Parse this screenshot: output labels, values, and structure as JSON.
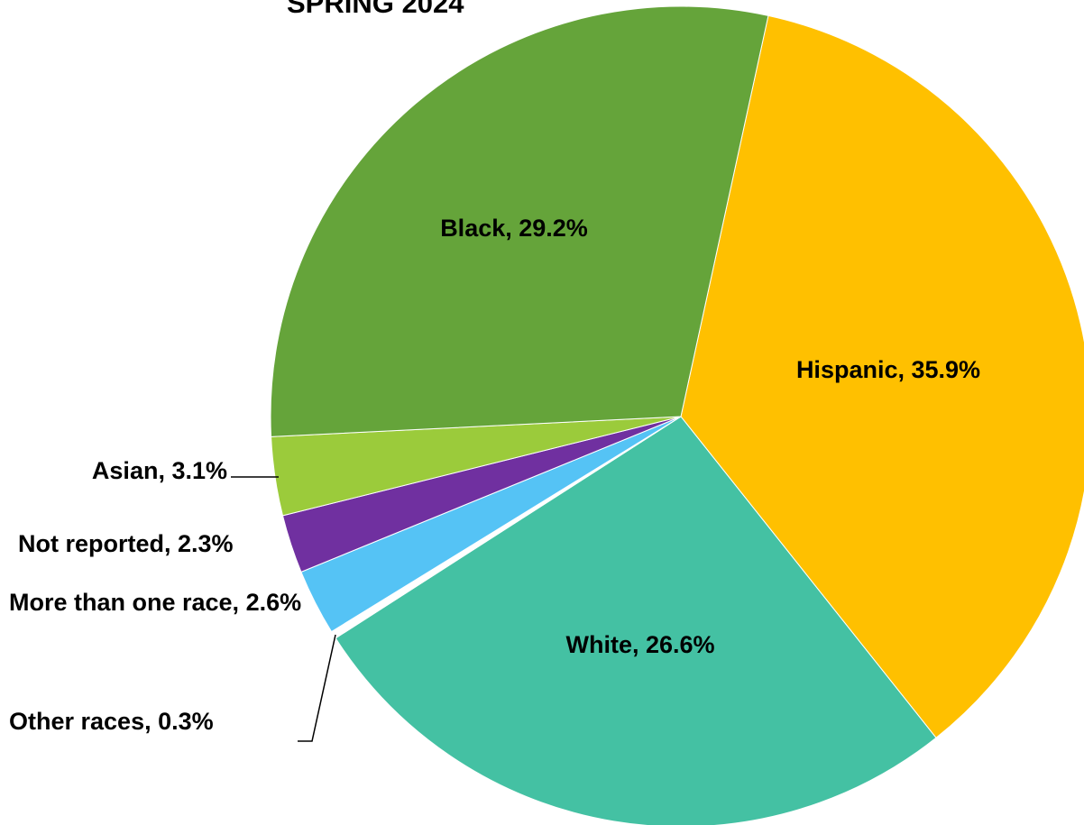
{
  "chart_data": {
    "type": "pie",
    "title": "SPRING 2024",
    "labels": [
      "Hispanic, 35.9%",
      "White, 26.6%",
      "Other races, 0.3%",
      "More than one race, 2.6%",
      "Not reported, 2.3%",
      "Asian, 3.1%",
      "Black, 29.2%"
    ],
    "values": [
      35.9,
      26.6,
      0.3,
      2.6,
      2.3,
      3.1,
      29.2
    ],
    "colors": [
      "#FFC000",
      "#44C1A3",
      "#FFFFFF",
      "#55C3F5",
      "#7030A0",
      "#9BCB3B",
      "#65A43A"
    ]
  }
}
